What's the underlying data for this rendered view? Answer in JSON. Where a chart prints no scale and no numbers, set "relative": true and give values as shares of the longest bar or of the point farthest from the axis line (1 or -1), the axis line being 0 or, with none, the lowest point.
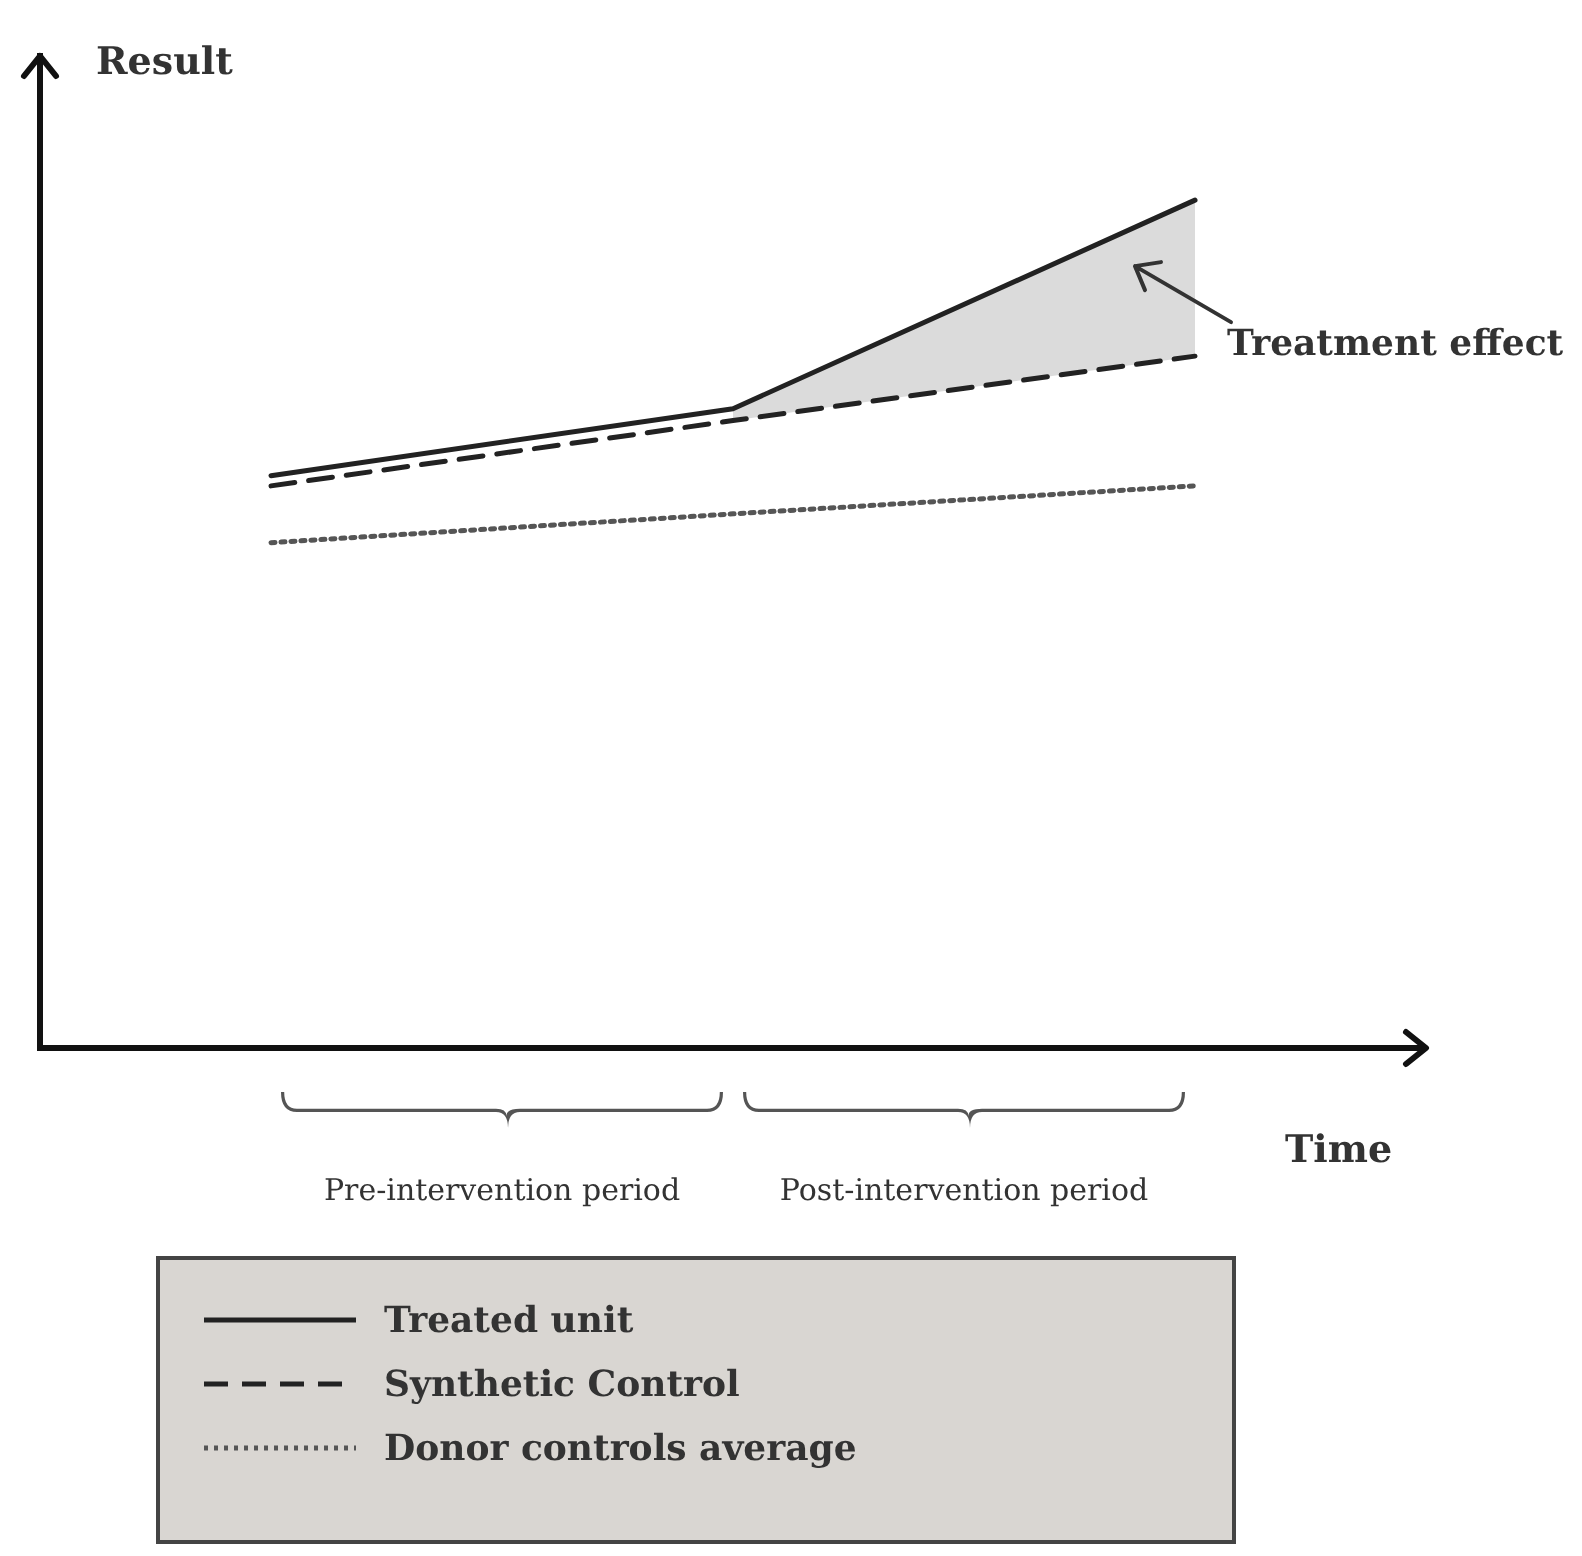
{
  "chart_data": {
    "type": "line",
    "relative": true,
    "xlabel": "Time",
    "ylabel": "Result",
    "categories": [
      null,
      null,
      null
    ],
    "series": [
      {
        "name": "Treated unit",
        "color": "#222222",
        "line_style": "solid",
        "values": [
          0.675,
          0.754,
          1
        ],
        "lower": [
          null,
          0.74,
          0.816
        ],
        "upper": [
          null,
          0.754,
          1
        ]
      },
      {
        "name": "Synthetic Control",
        "color": "#222222",
        "line_style": "dashed",
        "values": [
          0.663,
          0.74,
          0.816
        ]
      },
      {
        "name": "Donor controls average",
        "color": "#555555",
        "line_style": "dotted",
        "values": [
          0.596,
          0.63,
          0.663
        ]
      }
    ],
    "annotations": [
      "Pre-intervention period",
      "Post-intervention period",
      "Treatment effect"
    ],
    "legend": "bottom"
  }
}
